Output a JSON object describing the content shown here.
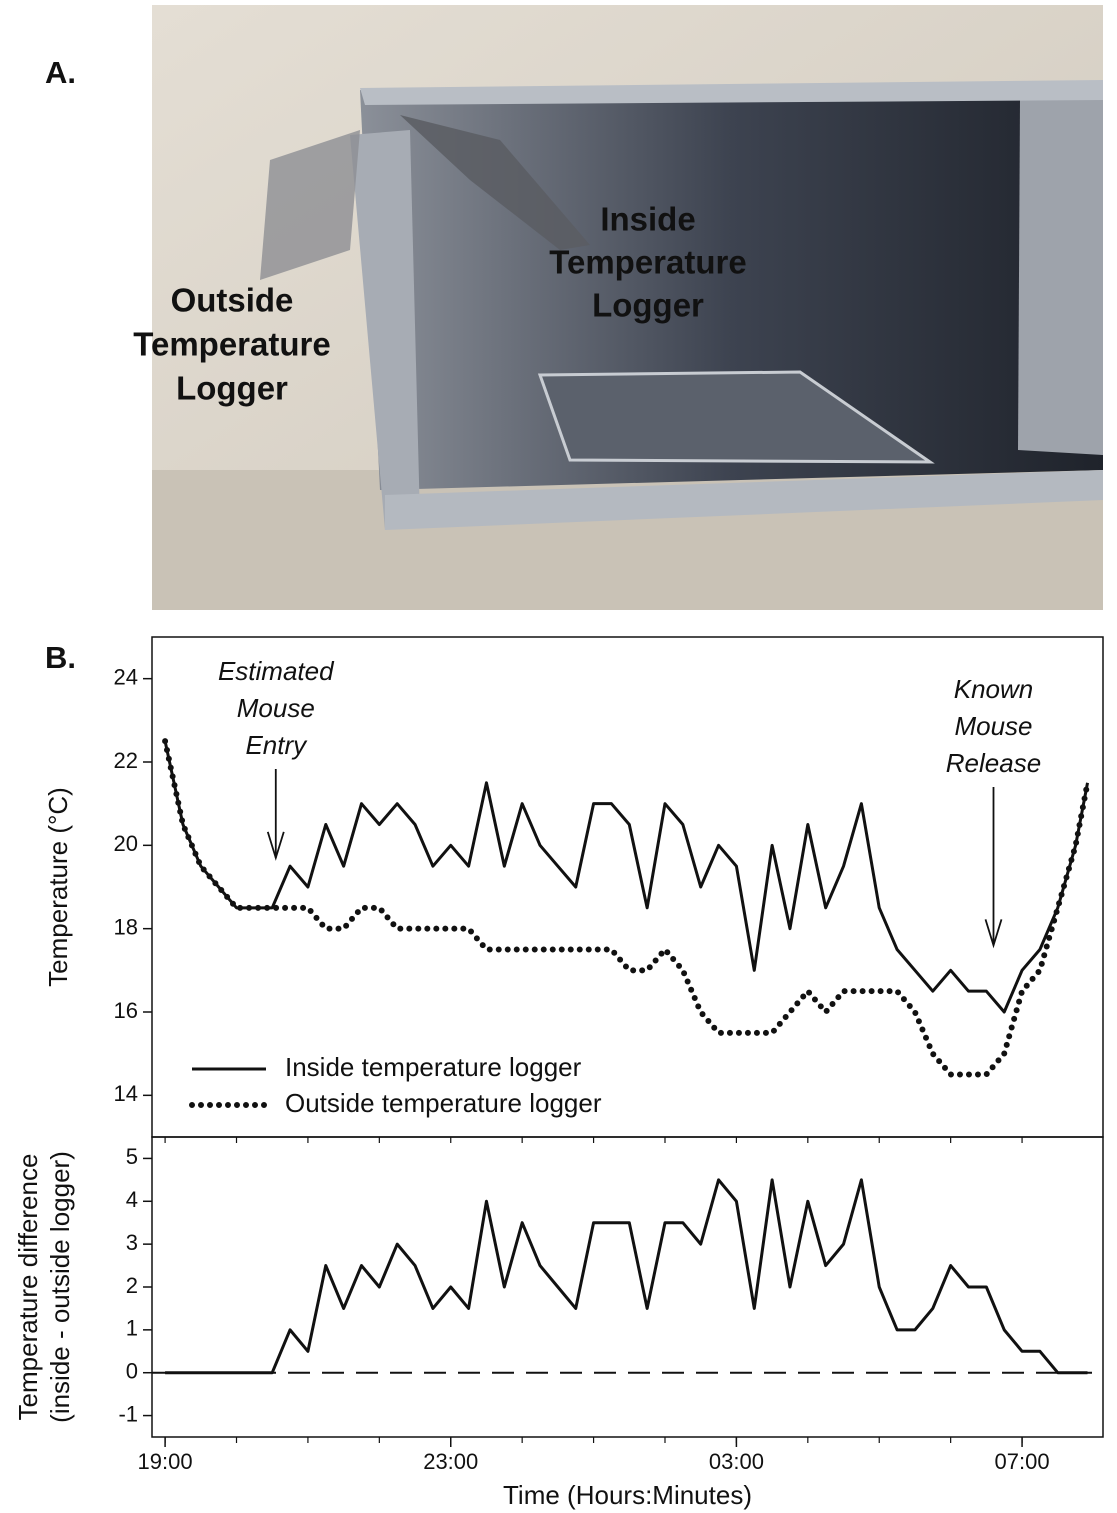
{
  "photo": {
    "label": "A.",
    "annotations": [
      [
        "Inside",
        "Temperature",
        "Logger"
      ],
      [
        "Outside",
        "Temperature",
        "Logger"
      ]
    ]
  },
  "chart_data": [
    {
      "type": "line",
      "panel_label": "B.",
      "ylabel": "Temperature (°C)",
      "x": [
        "19:00",
        "19:15",
        "19:30",
        "19:45",
        "20:00",
        "20:15",
        "20:30",
        "20:45",
        "21:00",
        "21:15",
        "21:30",
        "21:45",
        "22:00",
        "22:15",
        "22:30",
        "22:45",
        "23:00",
        "23:15",
        "23:30",
        "23:45",
        "00:00",
        "00:15",
        "00:30",
        "00:45",
        "01:00",
        "01:15",
        "01:30",
        "01:45",
        "02:00",
        "02:15",
        "02:30",
        "02:45",
        "03:00",
        "03:15",
        "03:30",
        "03:45",
        "04:00",
        "04:15",
        "04:30",
        "04:45",
        "05:00",
        "05:15",
        "05:30",
        "05:45",
        "06:00",
        "06:15",
        "06:30",
        "06:45",
        "07:00",
        "07:15",
        "07:30",
        "07:45",
        "07:55"
      ],
      "series": [
        {
          "name": "Inside temperature logger",
          "color": "#111111",
          "style": "solid",
          "values": [
            22.5,
            20.5,
            19.5,
            19.0,
            18.5,
            18.5,
            18.5,
            19.5,
            19.0,
            20.5,
            19.5,
            21.0,
            20.5,
            21.0,
            20.5,
            19.5,
            20.0,
            19.5,
            21.5,
            19.5,
            21.0,
            20.0,
            19.5,
            19.0,
            21.0,
            21.0,
            20.5,
            18.5,
            21.0,
            20.5,
            19.0,
            20.0,
            19.5,
            17.0,
            20.0,
            18.0,
            20.5,
            18.5,
            19.5,
            21.0,
            18.5,
            17.5,
            17.0,
            16.5,
            17.0,
            16.5,
            16.5,
            16.0,
            17.0,
            17.5,
            18.5,
            20.0,
            21.5
          ]
        },
        {
          "name": "Outside temperature logger",
          "color": "#111111",
          "style": "dotted",
          "values": [
            22.5,
            20.5,
            19.5,
            19.0,
            18.5,
            18.5,
            18.5,
            18.5,
            18.5,
            18.0,
            18.0,
            18.5,
            18.5,
            18.0,
            18.0,
            18.0,
            18.0,
            18.0,
            17.5,
            17.5,
            17.5,
            17.5,
            17.5,
            17.5,
            17.5,
            17.5,
            17.0,
            17.0,
            17.5,
            17.0,
            16.0,
            15.5,
            15.5,
            15.5,
            15.5,
            16.0,
            16.5,
            16.0,
            16.5,
            16.5,
            16.5,
            16.5,
            16.0,
            15.0,
            14.5,
            14.5,
            14.5,
            15.0,
            16.5,
            17.0,
            18.5,
            20.0,
            21.5
          ]
        }
      ],
      "xlim": [
        "18:49",
        "08:08"
      ],
      "xminorticks": [
        "19:00",
        "20:00",
        "21:00",
        "22:00",
        "23:00",
        "00:00",
        "01:00",
        "02:00",
        "03:00",
        "04:00",
        "05:00",
        "06:00",
        "07:00"
      ],
      "ylim": [
        13,
        25
      ],
      "yticks": [
        14,
        16,
        18,
        20,
        22,
        24
      ],
      "legend": "lower left",
      "annotations": [
        {
          "text": [
            "Estimated",
            "Mouse",
            "Entry"
          ],
          "x": "20:33",
          "y": 19.7
        },
        {
          "text": [
            "Known",
            "Mouse",
            "Release"
          ],
          "x": "06:36",
          "y": 17.6
        }
      ]
    },
    {
      "type": "line",
      "ylabel": [
        "Temperature difference",
        "(inside - outside logger)"
      ],
      "xlabel": "Time (Hours:Minutes)",
      "x": [
        "19:00",
        "19:15",
        "19:30",
        "19:45",
        "20:00",
        "20:15",
        "20:30",
        "20:45",
        "21:00",
        "21:15",
        "21:30",
        "21:45",
        "22:00",
        "22:15",
        "22:30",
        "22:45",
        "23:00",
        "23:15",
        "23:30",
        "23:45",
        "00:00",
        "00:15",
        "00:30",
        "00:45",
        "01:00",
        "01:15",
        "01:30",
        "01:45",
        "02:00",
        "02:15",
        "02:30",
        "02:45",
        "03:00",
        "03:15",
        "03:30",
        "03:45",
        "04:00",
        "04:15",
        "04:30",
        "04:45",
        "05:00",
        "05:15",
        "05:30",
        "05:45",
        "06:00",
        "06:15",
        "06:30",
        "06:45",
        "07:00",
        "07:15",
        "07:30",
        "07:45",
        "07:55"
      ],
      "series": [
        {
          "color": "#111111",
          "style": "solid",
          "values": [
            0,
            0,
            0,
            0,
            0,
            0,
            0,
            1,
            0.5,
            2.5,
            1.5,
            2.5,
            2,
            3,
            2.5,
            1.5,
            2,
            1.5,
            4,
            2,
            3.5,
            2.5,
            2,
            1.5,
            3.5,
            3.5,
            3.5,
            1.5,
            3.5,
            3.5,
            3,
            4.5,
            4,
            1.5,
            4.5,
            2,
            4,
            2.5,
            3,
            4.5,
            2,
            1,
            1,
            1.5,
            2.5,
            2,
            2,
            1,
            0.5,
            0.5,
            0,
            0,
            0
          ]
        }
      ],
      "reference_line": 0,
      "xlim": [
        "18:49",
        "08:08"
      ],
      "xticks": [
        "19:00",
        "23:00",
        "03:00",
        "07:00"
      ],
      "xminorticks": [
        "19:00",
        "20:00",
        "21:00",
        "22:00",
        "23:00",
        "00:00",
        "01:00",
        "02:00",
        "03:00",
        "04:00",
        "05:00",
        "06:00",
        "07:00"
      ],
      "ylim": [
        -1.5,
        5.5
      ],
      "yticks": [
        -1,
        0,
        1,
        2,
        3,
        4,
        5
      ]
    }
  ]
}
